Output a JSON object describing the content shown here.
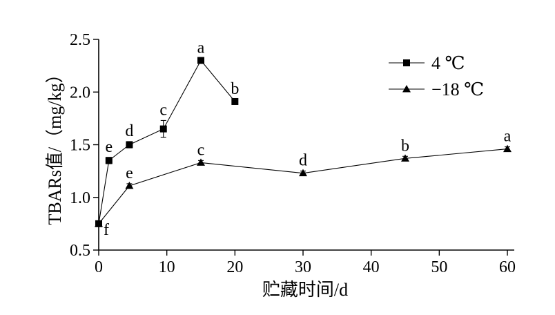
{
  "chart_data": {
    "type": "line",
    "xlabel": "贮藏时间/d",
    "ylabel": "TBARs值/（mg/kg）",
    "xlim": [
      0,
      60
    ],
    "ylim": [
      0.5,
      2.5
    ],
    "x_ticks": [
      "0",
      "10",
      "20",
      "30",
      "40",
      "50",
      "60"
    ],
    "y_ticks": [
      "0.5",
      "1.0",
      "1.5",
      "2.0",
      "2.5"
    ],
    "grid": false,
    "legend_position": "top-right",
    "series": [
      {
        "name": "4 ℃",
        "marker": "square",
        "x": [
          0,
          1.5,
          4.5,
          9.5,
          15,
          20
        ],
        "y": [
          0.75,
          1.35,
          1.5,
          1.65,
          2.3,
          1.91
        ],
        "err": [
          0.02,
          0.03,
          0.03,
          0.08,
          0.02,
          0.02
        ],
        "labels": [
          "",
          "e",
          "d",
          "c",
          "a",
          "b"
        ]
      },
      {
        "name": "−18 ℃",
        "marker": "triangle",
        "x": [
          0,
          4.5,
          15,
          30,
          45,
          60
        ],
        "y": [
          0.75,
          1.11,
          1.33,
          1.23,
          1.37,
          1.46
        ],
        "err": [
          0.02,
          0.02,
          0.02,
          0.02,
          0.02,
          0.02
        ],
        "labels": [
          "f",
          "e",
          "c",
          "d",
          "b",
          "a"
        ]
      }
    ]
  }
}
